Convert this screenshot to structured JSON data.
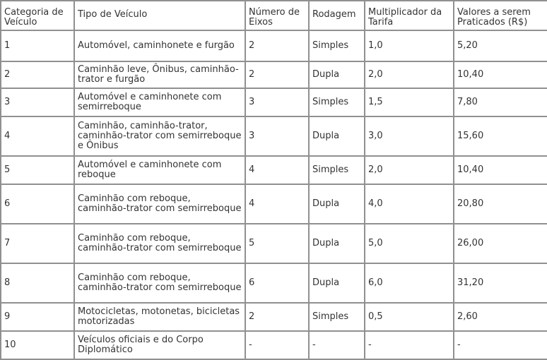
{
  "table": {
    "headers": [
      "Categoria de Veículo",
      "Tipo de Veículo",
      "Número de Eixos",
      "Rodagem",
      "Multiplicador da Tarifa",
      "Valores a serem Praticados (R$)"
    ],
    "rows": [
      [
        "1",
        "Automóvel, caminhonete e furgão",
        "2",
        "Simples",
        "1,0",
        "5,20"
      ],
      [
        "2",
        "Caminhão leve, Ônibus, caminhão-trator e furgão",
        "2",
        "Dupla",
        "2,0",
        "10,40"
      ],
      [
        "3",
        "Automóvel e caminhonete com semirreboque",
        "3",
        "Simples",
        "1,5",
        "7,80"
      ],
      [
        "4",
        "Caminhão, caminhão-trator, caminhão-trator com semirreboque e Ônibus",
        "3",
        "Dupla",
        "3,0",
        "15,60"
      ],
      [
        "5",
        "Automóvel e caminhonete com reboque",
        "4",
        "Simples",
        "2,0",
        "10,40"
      ],
      [
        "6",
        "Caminhão com reboque, caminhão-trator com semirreboque",
        "4",
        "Dupla",
        "4,0",
        "20,80"
      ],
      [
        "7",
        "Caminhão com reboque, caminhão-trator com semirreboque",
        "5",
        "Dupla",
        "5,0",
        "26,00"
      ],
      [
        "8",
        "Caminhão com reboque, caminhão-trator com semirreboque",
        "6",
        "Dupla",
        "6,0",
        "31,20"
      ],
      [
        "9",
        "Motocicletas, motonetas, bicicletas motorizadas",
        "2",
        "Simples",
        "0,5",
        "2,60"
      ],
      [
        "10",
        "Veículos oficiais e do Corpo Diplomático",
        "-",
        "-",
        "-",
        "-"
      ]
    ]
  }
}
